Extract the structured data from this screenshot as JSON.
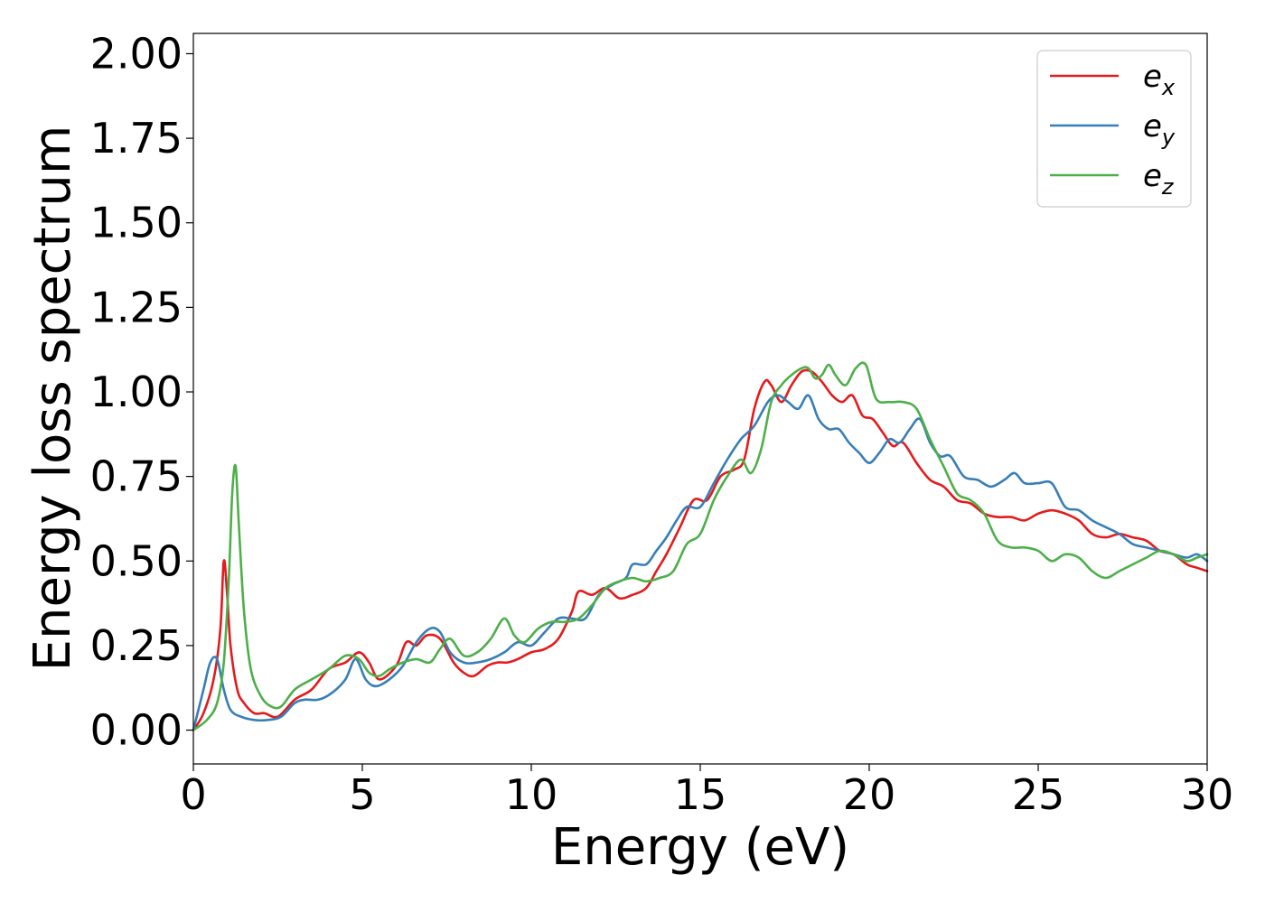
{
  "chart_data": {
    "type": "line",
    "title": "",
    "xlabel": "Energy (eV)",
    "ylabel": "Energy loss spectrum",
    "xlim": [
      0,
      30
    ],
    "ylim": [
      -0.1,
      2.06
    ],
    "xticks": [
      0,
      5,
      10,
      15,
      20,
      25,
      30
    ],
    "xtick_labels": [
      "0",
      "5",
      "10",
      "15",
      "20",
      "25",
      "30"
    ],
    "yticks": [
      0.0,
      0.25,
      0.5,
      0.75,
      1.0,
      1.25,
      1.5,
      1.75,
      2.0
    ],
    "ytick_labels": [
      "0.00",
      "0.25",
      "0.50",
      "0.75",
      "1.00",
      "1.25",
      "1.50",
      "1.75",
      "2.00"
    ],
    "grid": false,
    "legend_position": "top-right",
    "series": [
      {
        "name": "e_x",
        "legend_base": "e",
        "legend_sub": "x",
        "color": "#e41a1c",
        "x": [
          0,
          0.3,
          0.6,
          0.8,
          0.9,
          1.0,
          1.1,
          1.3,
          1.5,
          1.8,
          2.1,
          2.5,
          3.0,
          3.5,
          4.0,
          4.5,
          4.9,
          5.2,
          5.5,
          6.0,
          6.3,
          6.6,
          6.9,
          7.3,
          7.7,
          8.0,
          8.3,
          8.7,
          9.0,
          9.3,
          9.6,
          10.0,
          10.4,
          10.8,
          11.2,
          11.4,
          11.8,
          12.2,
          12.6,
          13.0,
          13.4,
          13.7,
          14.0,
          14.4,
          14.8,
          15.2,
          15.6,
          16.0,
          16.3,
          16.6,
          16.9,
          17.1,
          17.4,
          17.7,
          18.0,
          18.3,
          18.6,
          18.9,
          19.2,
          19.5,
          19.8,
          20.1,
          20.4,
          20.7,
          21.0,
          21.4,
          21.8,
          22.2,
          22.6,
          23.0,
          23.4,
          23.8,
          24.2,
          24.6,
          25.0,
          25.4,
          25.8,
          26.2,
          26.6,
          27.0,
          27.4,
          27.8,
          28.2,
          28.6,
          29.0,
          29.4,
          29.7,
          30.0
        ],
        "y": [
          0.0,
          0.05,
          0.15,
          0.3,
          0.5,
          0.4,
          0.25,
          0.12,
          0.08,
          0.05,
          0.05,
          0.04,
          0.09,
          0.12,
          0.18,
          0.2,
          0.23,
          0.2,
          0.15,
          0.19,
          0.26,
          0.25,
          0.28,
          0.27,
          0.2,
          0.17,
          0.16,
          0.19,
          0.2,
          0.2,
          0.21,
          0.23,
          0.24,
          0.27,
          0.35,
          0.41,
          0.4,
          0.42,
          0.39,
          0.4,
          0.42,
          0.47,
          0.52,
          0.6,
          0.68,
          0.68,
          0.75,
          0.77,
          0.8,
          0.95,
          1.03,
          1.02,
          0.97,
          1.02,
          1.06,
          1.06,
          1.03,
          0.99,
          0.97,
          0.99,
          0.93,
          0.92,
          0.88,
          0.84,
          0.85,
          0.79,
          0.74,
          0.72,
          0.68,
          0.67,
          0.64,
          0.63,
          0.63,
          0.62,
          0.64,
          0.65,
          0.64,
          0.62,
          0.58,
          0.57,
          0.58,
          0.57,
          0.56,
          0.53,
          0.52,
          0.49,
          0.48,
          0.47
        ]
      },
      {
        "name": "e_y",
        "legend_base": "e",
        "legend_sub": "y",
        "color": "#377eb8",
        "x": [
          0,
          0.3,
          0.5,
          0.7,
          0.9,
          1.1,
          1.4,
          1.8,
          2.2,
          2.6,
          3.0,
          3.3,
          3.7,
          4.1,
          4.5,
          4.8,
          5.1,
          5.4,
          5.8,
          6.2,
          6.6,
          7.0,
          7.3,
          7.6,
          8.0,
          8.4,
          8.8,
          9.2,
          9.6,
          10.0,
          10.4,
          10.8,
          11.2,
          11.6,
          12.0,
          12.4,
          12.8,
          13.0,
          13.4,
          13.7,
          14.0,
          14.3,
          14.6,
          15.0,
          15.4,
          15.8,
          16.2,
          16.6,
          17.0,
          17.3,
          17.6,
          17.9,
          18.2,
          18.5,
          18.8,
          19.1,
          19.4,
          19.7,
          20.0,
          20.3,
          20.6,
          20.9,
          21.2,
          21.5,
          21.8,
          22.1,
          22.4,
          22.8,
          23.2,
          23.6,
          24.0,
          24.3,
          24.6,
          25.0,
          25.4,
          25.8,
          26.2,
          26.6,
          27.0,
          27.4,
          27.8,
          28.2,
          28.6,
          29.0,
          29.4,
          29.7,
          30.0
        ],
        "y": [
          0.0,
          0.12,
          0.2,
          0.21,
          0.12,
          0.06,
          0.04,
          0.03,
          0.03,
          0.04,
          0.08,
          0.09,
          0.09,
          0.11,
          0.15,
          0.21,
          0.15,
          0.13,
          0.15,
          0.19,
          0.26,
          0.3,
          0.29,
          0.23,
          0.2,
          0.2,
          0.21,
          0.23,
          0.26,
          0.25,
          0.29,
          0.33,
          0.33,
          0.33,
          0.4,
          0.43,
          0.45,
          0.49,
          0.49,
          0.53,
          0.57,
          0.62,
          0.66,
          0.66,
          0.73,
          0.8,
          0.86,
          0.9,
          0.97,
          0.99,
          0.97,
          0.95,
          0.99,
          0.92,
          0.89,
          0.89,
          0.85,
          0.82,
          0.79,
          0.82,
          0.86,
          0.85,
          0.89,
          0.92,
          0.85,
          0.81,
          0.81,
          0.75,
          0.74,
          0.72,
          0.74,
          0.76,
          0.73,
          0.73,
          0.73,
          0.66,
          0.65,
          0.62,
          0.6,
          0.58,
          0.55,
          0.54,
          0.53,
          0.52,
          0.51,
          0.52,
          0.5
        ]
      },
      {
        "name": "e_z",
        "legend_base": "e",
        "legend_sub": "z",
        "color": "#4daf4a",
        "x": [
          0,
          0.4,
          0.7,
          0.9,
          1.05,
          1.15,
          1.25,
          1.35,
          1.5,
          1.7,
          2.0,
          2.3,
          2.6,
          3.0,
          3.5,
          4.0,
          4.5,
          4.9,
          5.2,
          5.5,
          5.8,
          6.2,
          6.6,
          7.0,
          7.3,
          7.6,
          8.0,
          8.4,
          8.8,
          9.2,
          9.5,
          9.8,
          10.2,
          10.6,
          11.0,
          11.4,
          11.8,
          12.2,
          12.6,
          13.0,
          13.4,
          13.8,
          14.2,
          14.6,
          15.0,
          15.4,
          15.8,
          16.2,
          16.5,
          16.8,
          17.1,
          17.4,
          17.7,
          18.0,
          18.2,
          18.4,
          18.6,
          18.8,
          19.0,
          19.3,
          19.6,
          19.9,
          20.2,
          20.6,
          21.0,
          21.4,
          21.8,
          22.2,
          22.6,
          23.0,
          23.4,
          23.8,
          24.2,
          24.6,
          25.0,
          25.4,
          25.8,
          26.2,
          26.6,
          27.0,
          27.4,
          27.8,
          28.2,
          28.6,
          29.0,
          29.4,
          29.7,
          30.0
        ],
        "y": [
          0.0,
          0.03,
          0.08,
          0.2,
          0.45,
          0.7,
          0.78,
          0.6,
          0.35,
          0.18,
          0.1,
          0.07,
          0.07,
          0.12,
          0.15,
          0.18,
          0.22,
          0.21,
          0.17,
          0.16,
          0.18,
          0.2,
          0.21,
          0.2,
          0.24,
          0.27,
          0.22,
          0.23,
          0.27,
          0.33,
          0.28,
          0.26,
          0.3,
          0.32,
          0.32,
          0.33,
          0.37,
          0.42,
          0.44,
          0.45,
          0.44,
          0.45,
          0.47,
          0.55,
          0.58,
          0.68,
          0.75,
          0.8,
          0.76,
          0.83,
          0.97,
          1.02,
          1.05,
          1.07,
          1.07,
          1.04,
          1.05,
          1.08,
          1.05,
          1.02,
          1.07,
          1.08,
          0.98,
          0.97,
          0.97,
          0.95,
          0.86,
          0.78,
          0.7,
          0.68,
          0.64,
          0.56,
          0.54,
          0.54,
          0.53,
          0.5,
          0.52,
          0.51,
          0.47,
          0.45,
          0.47,
          0.49,
          0.51,
          0.53,
          0.52,
          0.5,
          0.51,
          0.52
        ]
      }
    ]
  }
}
